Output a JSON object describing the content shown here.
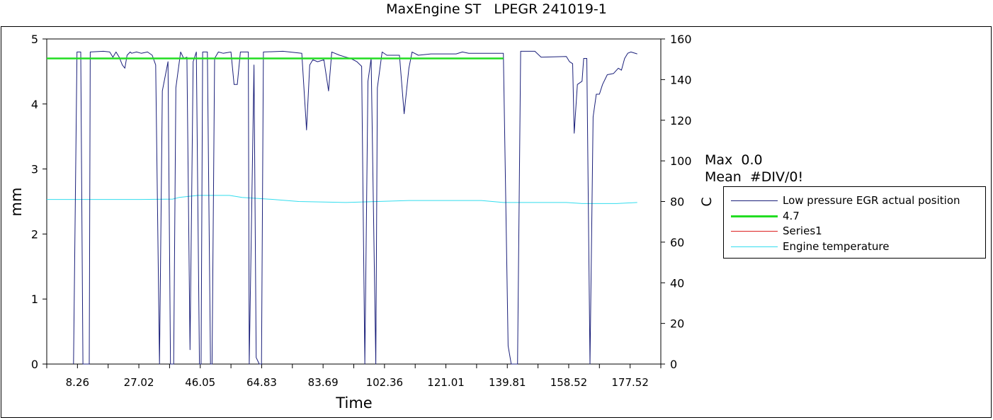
{
  "chart_data": {
    "type": "line",
    "title": "MaxEngine ST   LPEGR 241019-1",
    "xlabel": "Time",
    "ylabel": "mm",
    "y2label": "C",
    "x_ticks": [
      "8.26",
      "27.02",
      "46.05",
      "64.83",
      "83.69",
      "102.36",
      "121.01",
      "139.81",
      "158.52",
      "177.52"
    ],
    "xlim": [
      0,
      195
    ],
    "ylim": [
      0,
      5
    ],
    "y_ticks": [
      "0",
      "1",
      "2",
      "3",
      "4",
      "5"
    ],
    "y2lim": [
      0,
      160
    ],
    "y2_ticks": [
      "0",
      "20",
      "40",
      "60",
      "80",
      "100",
      "120",
      "140",
      "160"
    ],
    "legend_position": "right",
    "annotations": [
      "Max  0.0",
      "Mean  #DIV/0!"
    ],
    "series": [
      {
        "name": "Low pressure EGR actual position",
        "axis": "left",
        "color": "#1a1f7a",
        "points": [
          [
            0,
            null
          ],
          [
            8.5,
            0
          ],
          [
            9.6,
            4.8
          ],
          [
            10.8,
            4.8
          ],
          [
            11.5,
            0
          ],
          [
            13.5,
            0
          ],
          [
            13.8,
            4.8
          ],
          [
            18,
            4.81
          ],
          [
            20,
            4.8
          ],
          [
            21,
            4.72
          ],
          [
            22,
            4.8
          ],
          [
            23,
            4.72
          ],
          [
            24,
            4.6
          ],
          [
            24.8,
            4.55
          ],
          [
            25.5,
            4.75
          ],
          [
            26.5,
            4.8
          ],
          [
            27,
            4.78
          ],
          [
            28.5,
            4.8
          ],
          [
            30,
            4.78
          ],
          [
            32,
            4.8
          ],
          [
            33.5,
            4.75
          ],
          [
            34.6,
            4.6
          ],
          [
            35.8,
            0
          ],
          [
            36.7,
            4.2
          ],
          [
            38.5,
            4.65
          ],
          [
            39.3,
            0
          ],
          [
            40.3,
            0
          ],
          [
            41,
            4.25
          ],
          [
            42.5,
            4.8
          ],
          [
            43.5,
            4.7
          ],
          [
            44.5,
            4.72
          ],
          [
            45.5,
            0.22
          ],
          [
            46.5,
            4.65
          ],
          [
            47.5,
            4.8
          ],
          [
            48.5,
            0
          ],
          [
            49,
            0
          ],
          [
            49.5,
            4.8
          ],
          [
            51,
            4.8
          ],
          [
            52,
            0
          ],
          [
            52.5,
            0
          ],
          [
            53.3,
            4.7
          ],
          [
            54.5,
            4.8
          ],
          [
            56,
            4.78
          ],
          [
            58.5,
            4.8
          ],
          [
            59.5,
            4.3
          ],
          [
            60.5,
            4.3
          ],
          [
            61.5,
            4.8
          ],
          [
            64,
            4.8
          ],
          [
            64.3,
            0
          ],
          [
            65.8,
            4.6
          ],
          [
            66.5,
            0.1
          ],
          [
            67.5,
            0
          ],
          [
            68.2,
            0
          ],
          [
            68.8,
            4.8
          ],
          [
            75,
            4.81
          ],
          [
            81,
            4.78
          ],
          [
            82.5,
            3.6
          ],
          [
            83.5,
            4.6
          ],
          [
            84.5,
            4.68
          ],
          [
            86,
            4.65
          ],
          [
            88,
            4.68
          ],
          [
            89.5,
            4.2
          ],
          [
            90.5,
            4.8
          ],
          [
            93,
            4.75
          ],
          [
            95,
            4.72
          ],
          [
            96.5,
            4.7
          ],
          [
            98.5,
            4.65
          ],
          [
            100,
            4.58
          ],
          [
            101,
            0
          ],
          [
            102,
            4.35
          ],
          [
            103,
            4.7
          ],
          [
            104.5,
            0
          ],
          [
            105,
            4.25
          ],
          [
            106.5,
            4.8
          ],
          [
            108,
            4.75
          ],
          [
            112,
            4.75
          ],
          [
            113.5,
            3.85
          ],
          [
            115,
            4.55
          ],
          [
            116,
            4.8
          ],
          [
            118,
            4.75
          ],
          [
            122,
            4.77
          ],
          [
            130,
            4.77
          ],
          [
            132,
            4.8
          ],
          [
            134,
            4.78
          ],
          [
            145,
            4.78
          ],
          [
            146.5,
            0.28
          ],
          [
            147.5,
            0
          ],
          [
            149.5,
            0
          ],
          [
            150.5,
            4.81
          ],
          [
            155,
            4.81
          ],
          [
            157,
            4.72
          ],
          [
            165,
            4.73
          ],
          [
            166,
            4.65
          ],
          [
            167,
            4.62
          ],
          [
            167.5,
            3.55
          ],
          [
            168.5,
            4.3
          ],
          [
            170,
            4.35
          ],
          [
            170.5,
            4.7
          ],
          [
            171.5,
            4.7
          ],
          [
            172.5,
            0
          ],
          [
            173.5,
            3.8
          ],
          [
            174.5,
            4.15
          ],
          [
            175.5,
            4.15
          ],
          [
            176.5,
            4.3
          ],
          [
            178,
            4.45
          ],
          [
            180,
            4.47
          ],
          [
            181.5,
            4.55
          ],
          [
            182.5,
            4.52
          ],
          [
            183.5,
            4.7
          ],
          [
            184.5,
            4.78
          ],
          [
            185.5,
            4.8
          ],
          [
            187.5,
            4.77
          ]
        ]
      },
      {
        "name": "4.7",
        "axis": "left",
        "color": "#22dd22",
        "points": [
          [
            0,
            4.7
          ],
          [
            145,
            4.7
          ]
        ]
      },
      {
        "name": "Series1",
        "axis": "left",
        "color": "#dd2222",
        "points": []
      },
      {
        "name": "Engine temperature",
        "axis": "right",
        "color": "#33ddee",
        "points": [
          [
            0,
            81
          ],
          [
            30,
            81
          ],
          [
            40,
            81.2
          ],
          [
            42,
            82
          ],
          [
            48,
            83
          ],
          [
            58,
            83
          ],
          [
            62,
            82
          ],
          [
            72,
            81
          ],
          [
            80,
            80
          ],
          [
            95,
            79.5
          ],
          [
            105,
            80
          ],
          [
            115,
            80.5
          ],
          [
            138,
            80.5
          ],
          [
            145,
            79.5
          ],
          [
            165,
            79.5
          ],
          [
            170,
            79
          ],
          [
            181,
            79
          ],
          [
            187.5,
            79.5
          ]
        ]
      }
    ]
  }
}
